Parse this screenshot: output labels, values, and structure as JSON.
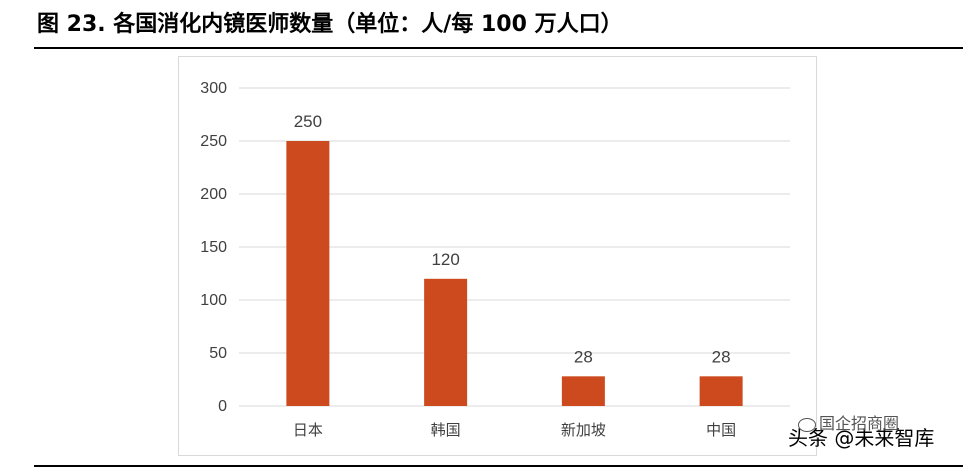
{
  "figure": {
    "title": "图 23. 各国消化内镜医师数量（单位：人/每 100 万人口）"
  },
  "chart_data": {
    "type": "bar",
    "title": "图 23. 各国消化内镜医师数量（单位：人/每 100 万人口）",
    "categories": [
      "日本",
      "韩国",
      "新加坡",
      "中国"
    ],
    "values": [
      250,
      120,
      28,
      28
    ],
    "data_labels": [
      "250",
      "120",
      "28",
      "28"
    ],
    "ylim": [
      0,
      300
    ],
    "yticks": [
      0,
      50,
      100,
      150,
      200,
      250,
      300
    ],
    "ytick_labels": [
      "0",
      "50",
      "100",
      "150",
      "200",
      "250",
      "300"
    ],
    "xlabel": "",
    "ylabel": "",
    "grid": true,
    "bar_color": "#cd4a1f",
    "grid_color": "#d9d9d9",
    "legend": "none"
  },
  "watermark": {
    "line1": "国企招商圈",
    "line2": "头条 @未来智库"
  }
}
